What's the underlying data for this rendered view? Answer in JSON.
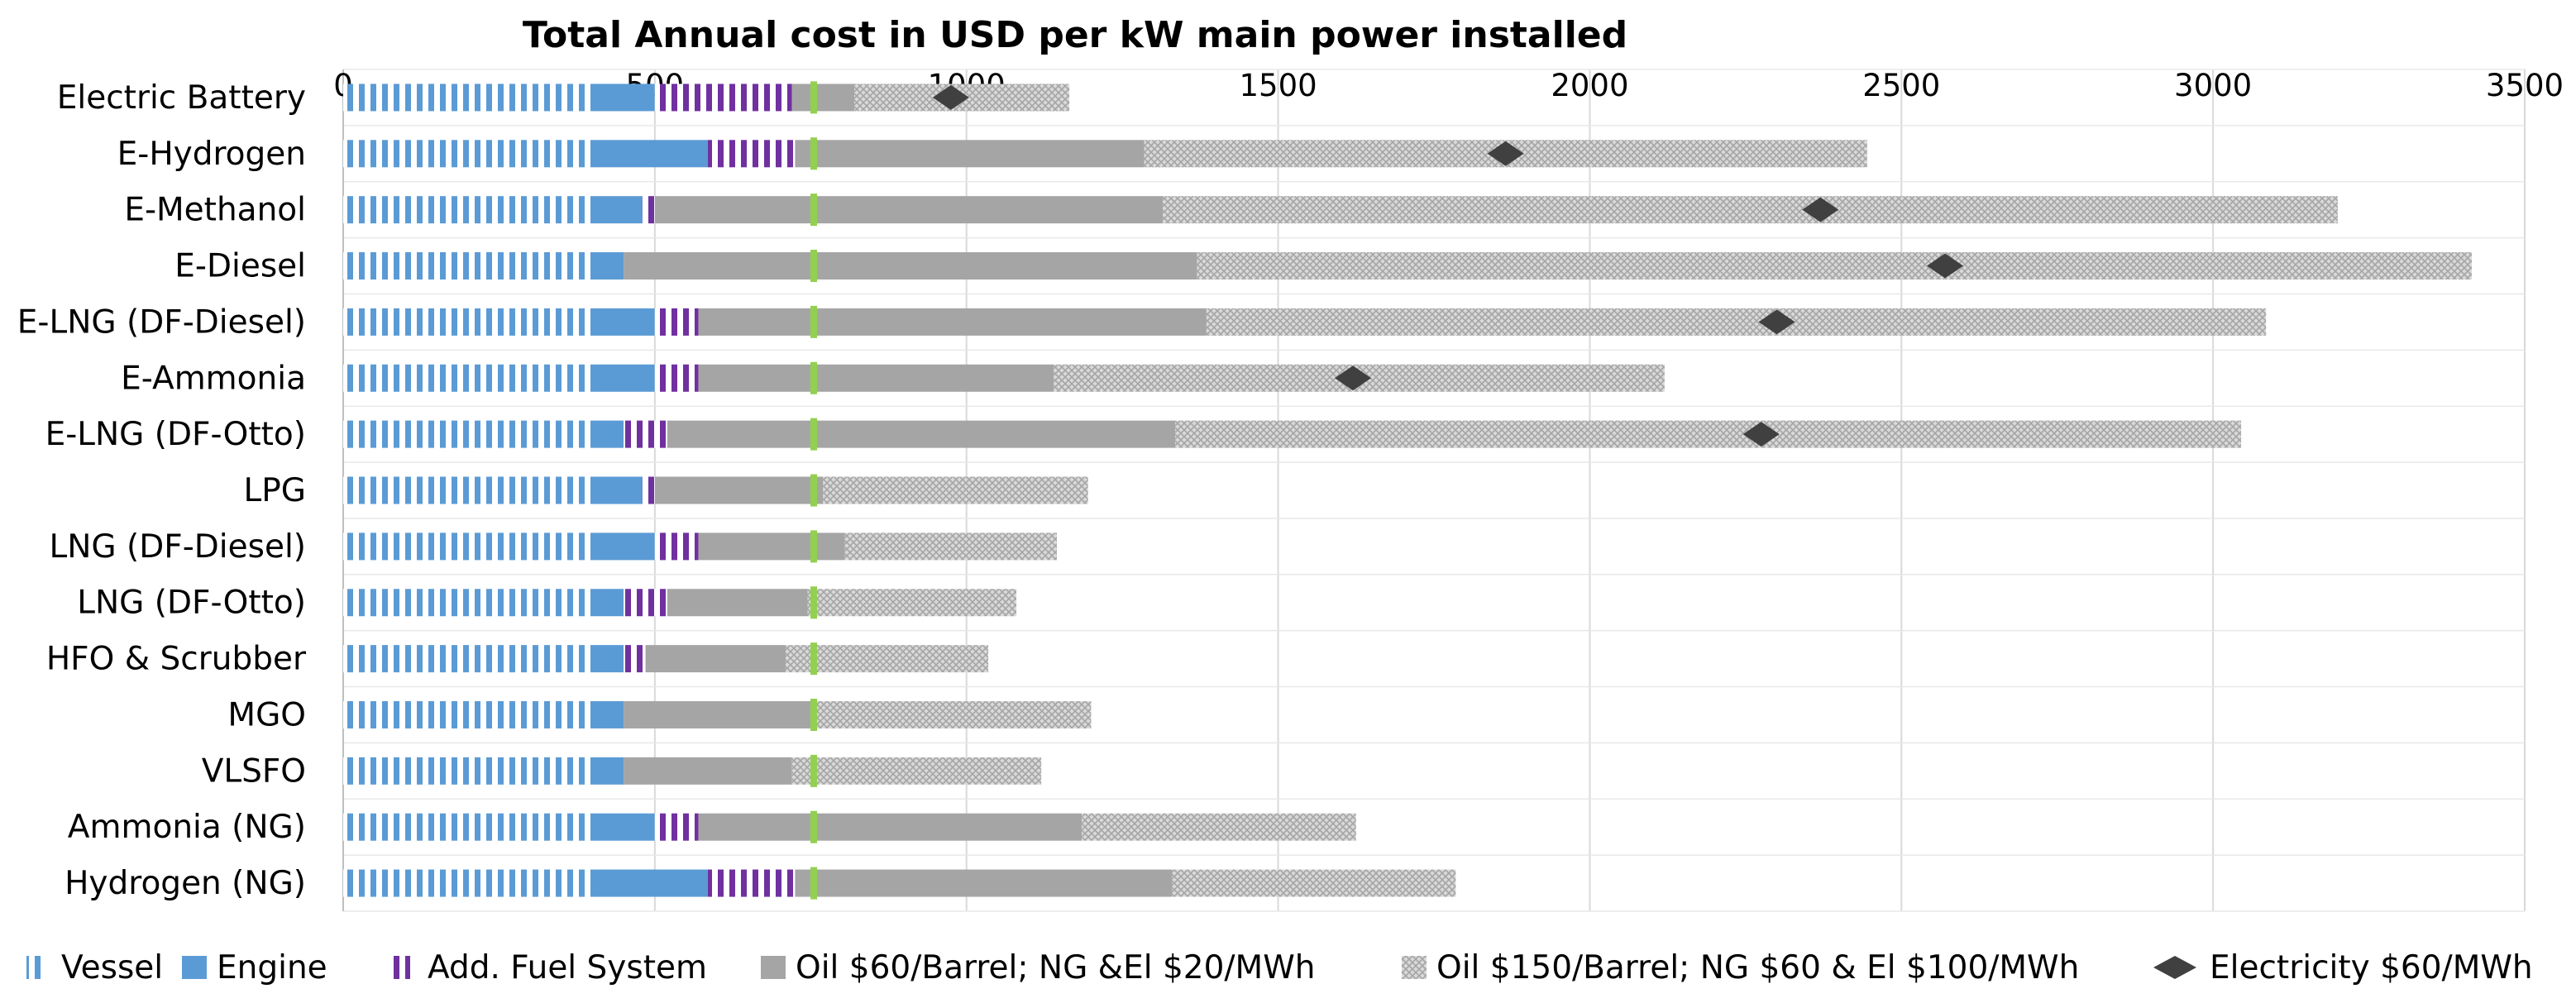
{
  "chart_data": {
    "type": "bar",
    "orientation": "horizontal",
    "stacked": true,
    "title": "Total Annual cost in USD per kW main power installed",
    "x_axis_position": "top",
    "xlim": [
      0,
      3500
    ],
    "xticks": [
      "0",
      "500",
      "1000",
      "1500",
      "2000",
      "2500",
      "3000",
      "3500"
    ],
    "grid": true,
    "legend_position": "bottom",
    "categories": [
      "Electric Battery",
      "E-Hydrogen",
      "E-Methanol",
      "E-Diesel",
      "E-LNG (DF-Diesel)",
      "E-Ammonia",
      "E-LNG (DF-Otto)",
      "LPG",
      "LNG (DF-Diesel)",
      "LNG (DF-Otto)",
      "HFO & Scrubber",
      "MGO",
      "VLSFO",
      "Ammonia (NG)",
      "Hydrogen (NG)"
    ],
    "series": [
      {
        "name": "Vessel",
        "kind": "bar",
        "color": "#5b9bd5",
        "pattern": "vertical-stripes",
        "values": [
          400,
          400,
          400,
          400,
          400,
          400,
          400,
          400,
          400,
          400,
          400,
          400,
          400,
          400,
          400
        ]
      },
      {
        "name": "Engine",
        "kind": "bar",
        "color": "#5b9bd5",
        "pattern": "solid",
        "values": [
          100,
          185,
          80,
          50,
          100,
          100,
          50,
          80,
          100,
          50,
          50,
          50,
          50,
          100,
          185
        ]
      },
      {
        "name": "Add. Fuel System",
        "kind": "bar",
        "color": "#7030a0",
        "pattern": "vertical-stripes",
        "values": [
          220,
          140,
          20,
          0,
          70,
          70,
          70,
          20,
          70,
          70,
          35,
          0,
          0,
          70,
          140
        ]
      },
      {
        "name": "Oil $60/Barrel; NG &El $20/MWh",
        "kind": "bar",
        "color": "#a5a5a5",
        "pattern": "solid",
        "values": [
          100,
          560,
          815,
          920,
          815,
          570,
          815,
          270,
          235,
          225,
          225,
          305,
          270,
          615,
          605
        ]
      },
      {
        "name": "Oil $150/Barrel; NG $60 & El $100/MWh",
        "kind": "bar",
        "color": "#a5a5a5",
        "pattern": "crosshatch",
        "values": [
          345,
          1160,
          1885,
          2045,
          1700,
          980,
          1710,
          425,
          340,
          335,
          325,
          445,
          400,
          440,
          455
        ]
      },
      {
        "name": "Electricity $60/MWh",
        "kind": "marker",
        "color": "#404040",
        "marker": "diamond",
        "values": [
          975,
          1865,
          2370,
          2570,
          2300,
          1620,
          2275,
          null,
          null,
          null,
          null,
          null,
          null,
          null,
          null
        ]
      }
    ],
    "reference_line": {
      "color": "#92d050",
      "value": 755
    }
  }
}
